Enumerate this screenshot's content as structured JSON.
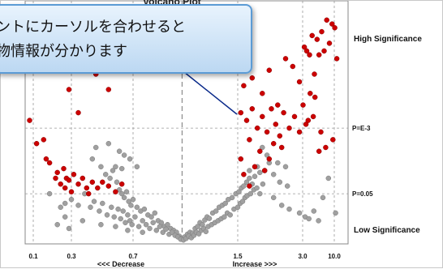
{
  "chart_title": "Volcano Plot",
  "callout": {
    "line1": "ントにカーソルを合わせると",
    "line2": "物情報が分かります"
  },
  "chart_data": {
    "type": "scatter",
    "title": "Volcano Plot",
    "xlabel_left": "<<< Decrease",
    "xlabel_right": "Increase >>>",
    "x_scale": "log",
    "x_ticks": [
      "0.1",
      "0.3",
      "0.7",
      "1.5",
      "3.0",
      "10.0"
    ],
    "y_ticks": [
      "P=E-3",
      "P=0.05"
    ],
    "region_labels": {
      "top": "High Significance",
      "bottom": "Low Significance"
    },
    "grid": true,
    "series": [
      {
        "color": "#cc0000",
        "points": [
          [
            0.09,
            3.2
          ],
          [
            0.11,
            2.6
          ],
          [
            0.135,
            2.7
          ],
          [
            0.145,
            2.2
          ],
          [
            0.16,
            2.1
          ],
          [
            0.19,
            1.7
          ],
          [
            0.2,
            1.85
          ],
          [
            0.22,
            1.55
          ],
          [
            0.24,
            1.95
          ],
          [
            0.26,
            1.7
          ],
          [
            0.28,
            1.65
          ],
          [
            0.31,
            1.8
          ],
          [
            0.33,
            1.55
          ],
          [
            0.35,
            1.7
          ],
          [
            0.37,
            1.45
          ],
          [
            0.4,
            1.6
          ],
          [
            0.43,
            1.45
          ],
          [
            0.46,
            1.6
          ],
          [
            0.5,
            1.5
          ],
          [
            0.55,
            1.35
          ],
          [
            0.6,
            1.55
          ],
          [
            0.3,
            1.35
          ],
          [
            0.25,
            1.45
          ],
          [
            0.38,
            1.3
          ],
          [
            0.07,
            4.9
          ],
          [
            0.11,
            4.6
          ],
          [
            0.16,
            4.5
          ],
          [
            0.28,
            4.0
          ],
          [
            0.42,
            4.4
          ],
          [
            0.5,
            4.0
          ],
          [
            0.33,
            3.4
          ],
          [
            0.36,
            4.8
          ],
          [
            1.6,
            4.1
          ],
          [
            1.75,
            4.3
          ],
          [
            1.95,
            3.9
          ],
          [
            2.1,
            4.5
          ],
          [
            2.3,
            3.6
          ],
          [
            2.5,
            4.8
          ],
          [
            2.7,
            4.6
          ],
          [
            2.9,
            4.2
          ],
          [
            3.2,
            5.1
          ],
          [
            3.5,
            5.0
          ],
          [
            3.9,
            4.9
          ],
          [
            4.3,
            5.4
          ],
          [
            4.7,
            4.4
          ],
          [
            5.2,
            5.3
          ],
          [
            5.6,
            4.9
          ],
          [
            6.2,
            5.5
          ],
          [
            6.8,
            5.0
          ],
          [
            7.5,
            5.8
          ],
          [
            8.3,
            5.2
          ],
          [
            9.2,
            5.7
          ],
          [
            10.2,
            5.6
          ],
          [
            11.0,
            4.8
          ],
          [
            4.0,
            3.9
          ],
          [
            4.8,
            3.8
          ],
          [
            3.4,
            3.1
          ],
          [
            4.5,
            3.3
          ],
          [
            3.7,
            3.2
          ],
          [
            6.0,
            2.9
          ],
          [
            7.2,
            2.5
          ],
          [
            9.5,
            2.7
          ],
          [
            5.6,
            2.4
          ],
          [
            1.55,
            3.4
          ],
          [
            1.65,
            3.2
          ],
          [
            1.75,
            3.5
          ],
          [
            1.85,
            3.0
          ],
          [
            1.95,
            3.3
          ],
          [
            2.05,
            2.9
          ],
          [
            2.15,
            3.5
          ],
          [
            2.25,
            3.1
          ],
          [
            2.35,
            2.8
          ],
          [
            2.45,
            3.4
          ],
          [
            2.6,
            3.0
          ],
          [
            2.75,
            3.3
          ],
          [
            2.9,
            2.9
          ],
          [
            3.05,
            3.6
          ],
          [
            2.2,
            2.6
          ],
          [
            2.4,
            2.5
          ],
          [
            1.7,
            2.7
          ],
          [
            1.9,
            2.4
          ],
          [
            2.1,
            2.2
          ],
          [
            1.8,
            2.0
          ],
          [
            1.6,
            1.8
          ],
          [
            1.55,
            2.2
          ],
          [
            2.0,
            1.9
          ],
          [
            1.7,
            1.5
          ]
        ]
      },
      {
        "color": "#a0a0a0",
        "points": [
          [
            0.42,
            2.5
          ],
          [
            0.4,
            2.2
          ],
          [
            0.45,
            2.0
          ],
          [
            0.48,
            1.8
          ],
          [
            0.51,
            1.7
          ],
          [
            0.53,
            1.9
          ],
          [
            0.56,
            1.6
          ],
          [
            0.58,
            1.4
          ],
          [
            0.6,
            1.3
          ],
          [
            0.62,
            1.2
          ],
          [
            0.64,
            1.35
          ],
          [
            0.66,
            1.1
          ],
          [
            0.68,
            1.0
          ],
          [
            0.7,
            1.15
          ],
          [
            0.72,
            0.95
          ],
          [
            0.74,
            0.85
          ],
          [
            0.76,
            0.9
          ],
          [
            0.78,
            0.75
          ],
          [
            0.8,
            0.7
          ],
          [
            0.82,
            0.8
          ],
          [
            0.84,
            0.6
          ],
          [
            0.86,
            0.55
          ],
          [
            0.88,
            0.45
          ],
          [
            0.9,
            0.5
          ],
          [
            0.92,
            0.4
          ],
          [
            0.94,
            0.35
          ],
          [
            0.96,
            0.3
          ],
          [
            0.98,
            0.2
          ],
          [
            1.0,
            0.15
          ],
          [
            1.02,
            0.18
          ],
          [
            1.04,
            0.25
          ],
          [
            1.06,
            0.3
          ],
          [
            1.08,
            0.28
          ],
          [
            1.1,
            0.4
          ],
          [
            1.12,
            0.45
          ],
          [
            1.14,
            0.55
          ],
          [
            1.16,
            0.5
          ],
          [
            1.18,
            0.62
          ],
          [
            1.2,
            0.7
          ],
          [
            1.22,
            0.66
          ],
          [
            1.25,
            0.8
          ],
          [
            1.28,
            0.85
          ],
          [
            1.31,
            0.95
          ],
          [
            1.34,
            1.0
          ],
          [
            1.37,
            1.05
          ],
          [
            1.4,
            1.15
          ],
          [
            1.44,
            1.2
          ],
          [
            1.48,
            1.3
          ],
          [
            1.52,
            1.35
          ],
          [
            1.56,
            1.45
          ],
          [
            1.6,
            1.5
          ],
          [
            1.65,
            1.6
          ],
          [
            1.7,
            1.7
          ],
          [
            1.75,
            1.55
          ],
          [
            1.8,
            1.75
          ],
          [
            1.9,
            1.85
          ],
          [
            2.0,
            1.9
          ],
          [
            1.85,
            2.0
          ],
          [
            2.1,
            2.1
          ],
          [
            0.3,
            1.15
          ],
          [
            0.33,
            1.0
          ],
          [
            0.36,
            1.3
          ],
          [
            0.39,
            0.95
          ],
          [
            0.41,
            1.1
          ],
          [
            0.44,
            0.85
          ],
          [
            0.46,
            1.05
          ],
          [
            0.49,
            0.75
          ],
          [
            0.52,
            0.95
          ],
          [
            0.54,
            0.7
          ],
          [
            0.57,
            0.9
          ],
          [
            0.59,
            0.65
          ],
          [
            0.61,
            0.85
          ],
          [
            0.63,
            0.55
          ],
          [
            0.65,
            0.75
          ],
          [
            0.67,
            0.6
          ],
          [
            0.69,
            0.5
          ],
          [
            0.71,
            0.7
          ],
          [
            0.73,
            0.45
          ],
          [
            0.75,
            0.6
          ],
          [
            0.77,
            0.5
          ],
          [
            0.79,
            0.4
          ],
          [
            0.81,
            0.55
          ],
          [
            0.83,
            0.35
          ],
          [
            0.85,
            0.45
          ],
          [
            0.87,
            0.3
          ],
          [
            0.89,
            0.38
          ],
          [
            0.91,
            0.25
          ],
          [
            0.93,
            0.3
          ],
          [
            0.95,
            0.22
          ],
          [
            0.97,
            0.18
          ],
          [
            0.99,
            0.12
          ],
          [
            1.01,
            0.1
          ],
          [
            1.03,
            0.14
          ],
          [
            1.05,
            0.2
          ],
          [
            1.07,
            0.16
          ],
          [
            1.09,
            0.22
          ],
          [
            1.11,
            0.3
          ],
          [
            1.13,
            0.26
          ],
          [
            1.15,
            0.35
          ],
          [
            1.17,
            0.4
          ],
          [
            1.19,
            0.32
          ],
          [
            1.21,
            0.45
          ],
          [
            1.24,
            0.5
          ],
          [
            1.27,
            0.55
          ],
          [
            1.3,
            0.6
          ],
          [
            1.33,
            0.65
          ],
          [
            1.36,
            0.7
          ],
          [
            1.39,
            0.8
          ],
          [
            1.42,
            0.75
          ],
          [
            1.46,
            0.9
          ],
          [
            1.5,
            0.95
          ],
          [
            1.54,
            1.05
          ],
          [
            1.58,
            1.1
          ],
          [
            1.62,
            1.2
          ],
          [
            1.66,
            1.25
          ],
          [
            1.72,
            1.3
          ],
          [
            1.78,
            1.4
          ],
          [
            1.84,
            1.45
          ],
          [
            1.9,
            1.3
          ],
          [
            1.96,
            1.55
          ],
          [
            0.25,
            0.7
          ],
          [
            0.2,
            0.5
          ],
          [
            0.28,
            0.4
          ],
          [
            0.35,
            0.6
          ],
          [
            0.45,
            0.5
          ],
          [
            0.55,
            0.45
          ],
          [
            0.65,
            0.35
          ],
          [
            0.75,
            0.3
          ],
          [
            2.2,
            1.2
          ],
          [
            2.4,
            1.0
          ],
          [
            2.6,
            0.9
          ],
          [
            2.9,
            0.8
          ],
          [
            3.3,
            0.7
          ],
          [
            3.8,
            0.65
          ],
          [
            4.6,
            0.85
          ],
          [
            5.5,
            0.6
          ],
          [
            6.5,
            1.2
          ],
          [
            8.0,
            1.7
          ],
          [
            10.5,
            0.8
          ],
          [
            0.16,
            1.3
          ],
          [
            0.25,
            1.05
          ],
          [
            0.22,
            0.95
          ],
          [
            0.58,
            2.4
          ],
          [
            0.62,
            2.3
          ],
          [
            0.5,
            2.6
          ],
          [
            0.55,
            2.0
          ],
          [
            0.67,
            2.2
          ],
          [
            0.72,
            2.0
          ],
          [
            0.6,
            1.95
          ],
          [
            1.95,
            2.5
          ],
          [
            2.05,
            2.3
          ],
          [
            2.3,
            2.1
          ],
          [
            2.5,
            2.0
          ],
          [
            2.2,
            1.8
          ],
          [
            2.35,
            1.6
          ],
          [
            2.55,
            1.5
          ],
          [
            1.7,
            1.9
          ]
        ]
      }
    ],
    "p_lines": {
      "P=E-3": 3.0,
      "P=0.05": 1.3
    }
  }
}
